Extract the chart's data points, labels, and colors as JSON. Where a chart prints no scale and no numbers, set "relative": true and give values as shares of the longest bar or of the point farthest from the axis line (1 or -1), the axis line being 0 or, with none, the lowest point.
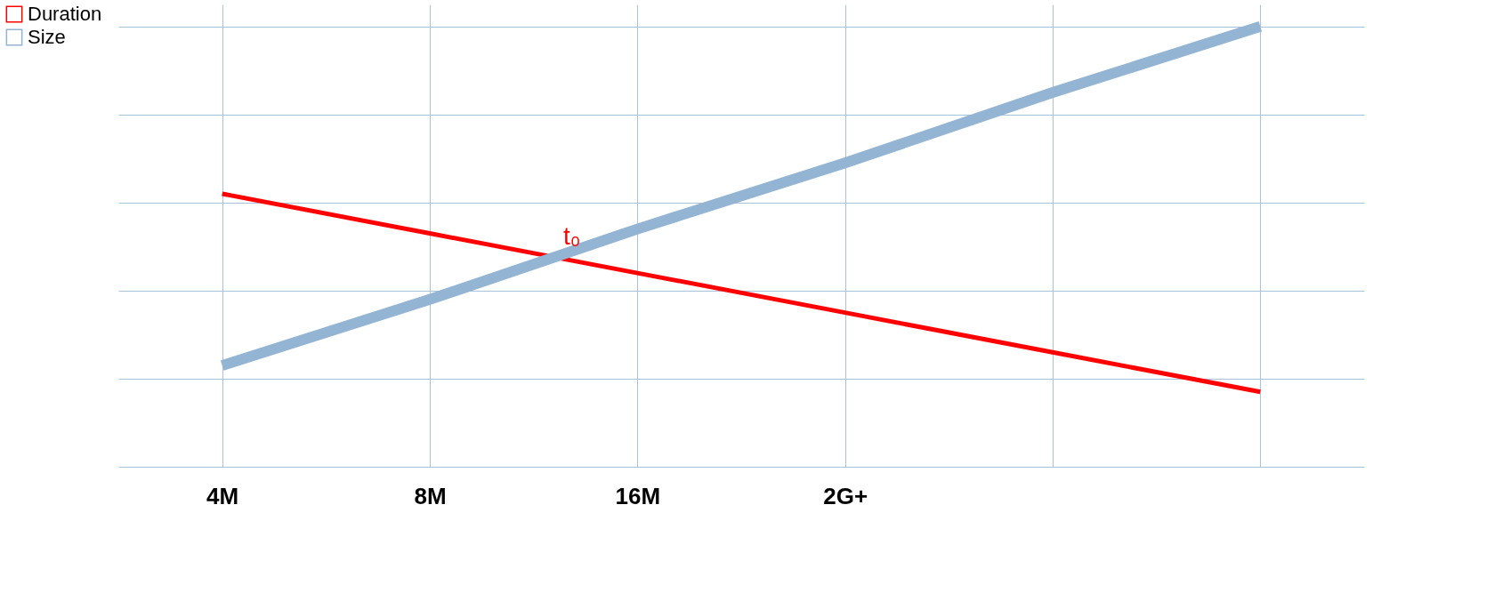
{
  "chart_data": {
    "type": "line",
    "relative": true,
    "categories": [
      "4M",
      "8M",
      "16M",
      "2G+",
      null,
      null
    ],
    "series": [
      {
        "name": "Duration",
        "color": "#ff0000",
        "values": [
          0.62,
          0.53,
          0.44,
          0.35,
          0.26,
          0.17
        ]
      },
      {
        "name": "Size",
        "color": "#94b4d4",
        "values": [
          0.23,
          0.38,
          0.54,
          0.69,
          0.85,
          1.0
        ]
      }
    ],
    "annotations": [
      "t₀"
    ],
    "grid": true,
    "legend": "left",
    "marker": "none",
    "line_style": "solid"
  }
}
